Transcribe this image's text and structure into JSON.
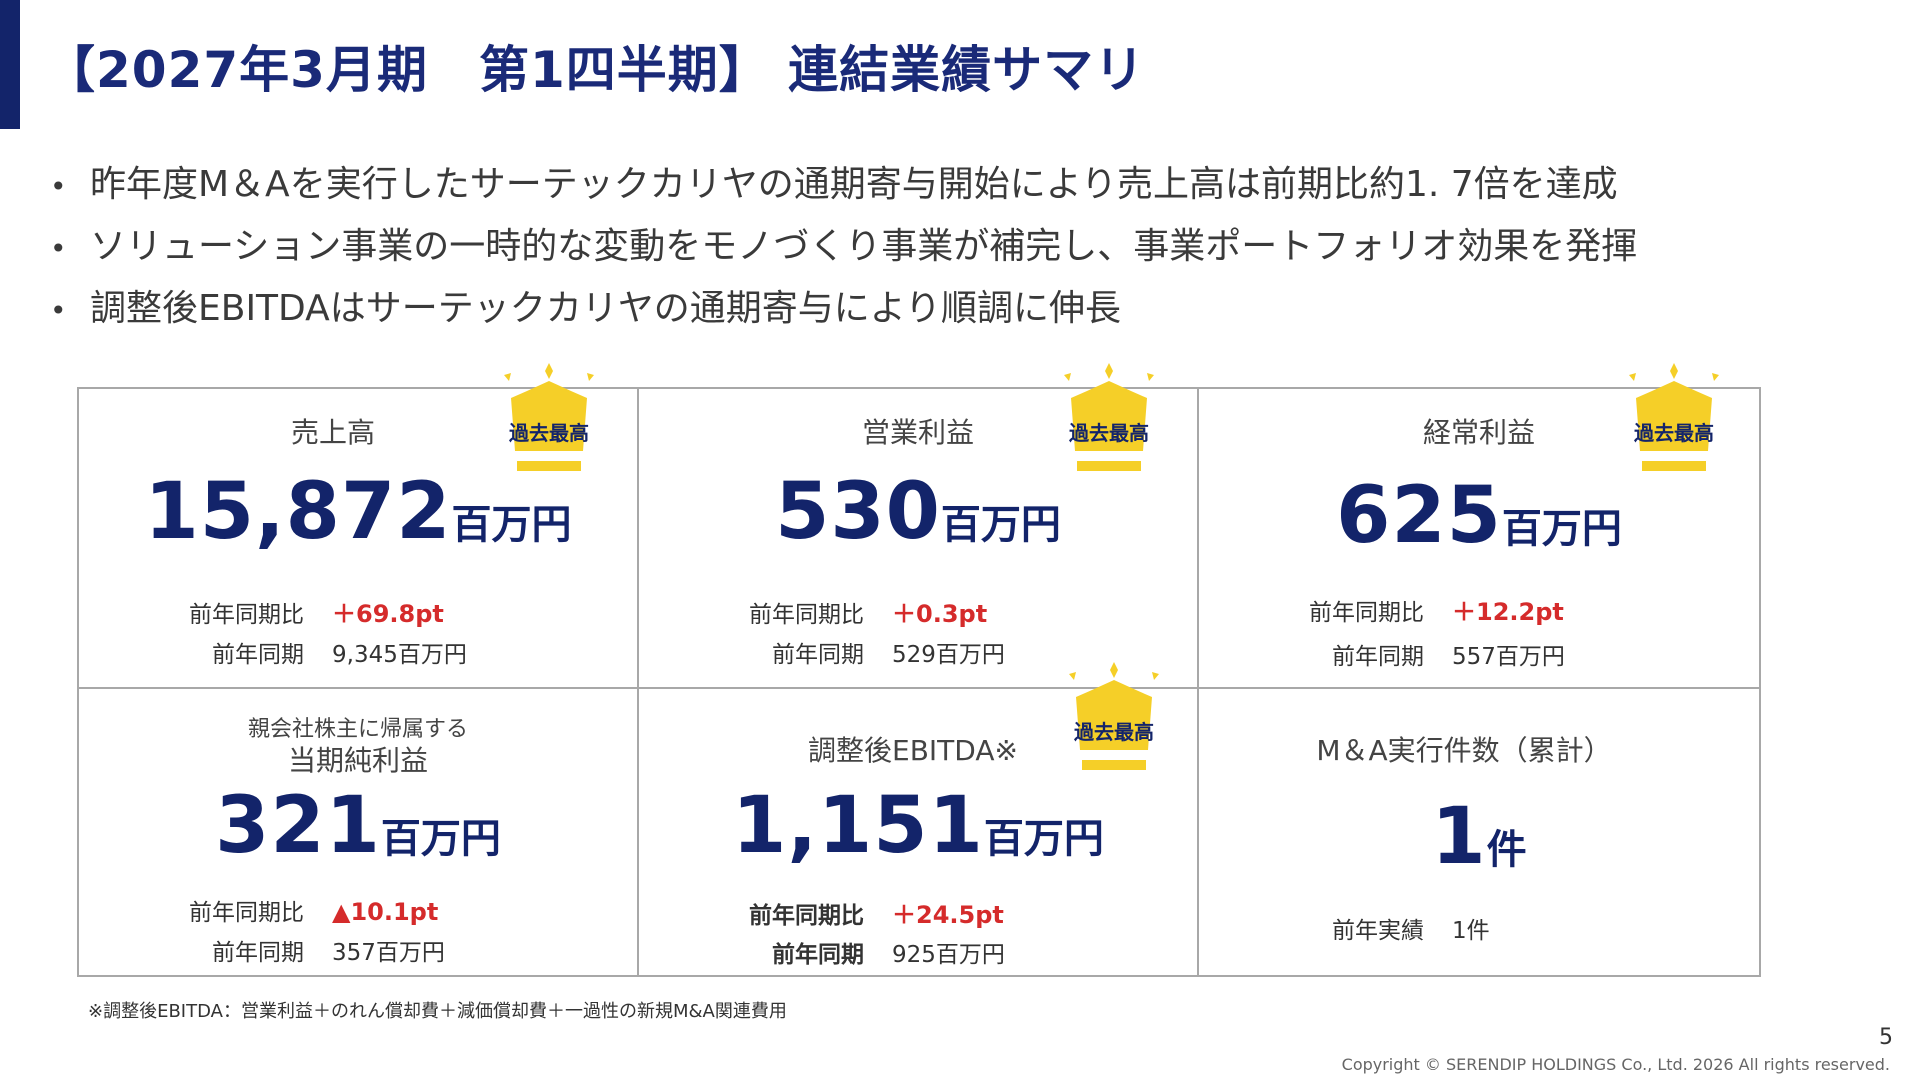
{
  "title": "【2027年3月期　第1四半期】 連結業績サマリ",
  "bullets": [
    "昨年度M＆Aを実行したサーテックカリヤの通期寄与開始により売上高は前期比約1. 7倍を達成",
    "ソリューション事業の一時的な変動をモノづくり事業が補完し、事業ポートフォリオ効果を発揮",
    "調整後EBITDAはサーテックカリヤの通期寄与により順調に伸長"
  ],
  "badge": "過去最高",
  "colors": {
    "navy": "#13246a",
    "gold": "#f5cf28",
    "red": "#d52b2b"
  },
  "cards": {
    "sales": {
      "label": "売上高",
      "value": "15,872",
      "unit": "百万円",
      "ratio_label": "前年同期比",
      "ratio": "＋69.8pt",
      "prev_label": "前年同期",
      "prev": "9,345百万円"
    },
    "op": {
      "label": "営業利益",
      "value": "530",
      "unit": "百万円",
      "ratio_label": "前年同期比",
      "ratio": "＋0.3pt",
      "prev_label": "前年同期",
      "prev": "529百万円"
    },
    "ord": {
      "label": "経常利益",
      "value": "625",
      "unit": "百万円",
      "ratio_label": "前年同期比",
      "ratio": "＋12.2pt",
      "prev_label": "前年同期",
      "prev": "557百万円"
    },
    "net": {
      "sublabel": "親会社株主に帰属する",
      "label": "当期純利益",
      "value": "321",
      "unit": "百万円",
      "ratio_label": "前年同期比",
      "ratio": "▲10.1pt",
      "prev_label": "前年同期",
      "prev": "357百万円"
    },
    "ebitda": {
      "label": "調整後EBITDA※",
      "value": "1,151",
      "unit": "百万円",
      "ratio_label": "前年同期比",
      "ratio": "＋24.5pt",
      "prev_label": "前年同期",
      "prev": "925百万円"
    },
    "ma": {
      "label": "M＆A実行件数（累計）",
      "value": "1",
      "unit": "件",
      "prev_label": "前年実績",
      "prev": "1件"
    }
  },
  "footnote": "※調整後EBITDA：営業利益＋のれん償却費＋減価償却費＋一過性の新規M&A関連費用",
  "page_number": "5",
  "copyright": "Copyright © SERENDIP HOLDINGS Co., Ltd.  2026 All rights reserved."
}
